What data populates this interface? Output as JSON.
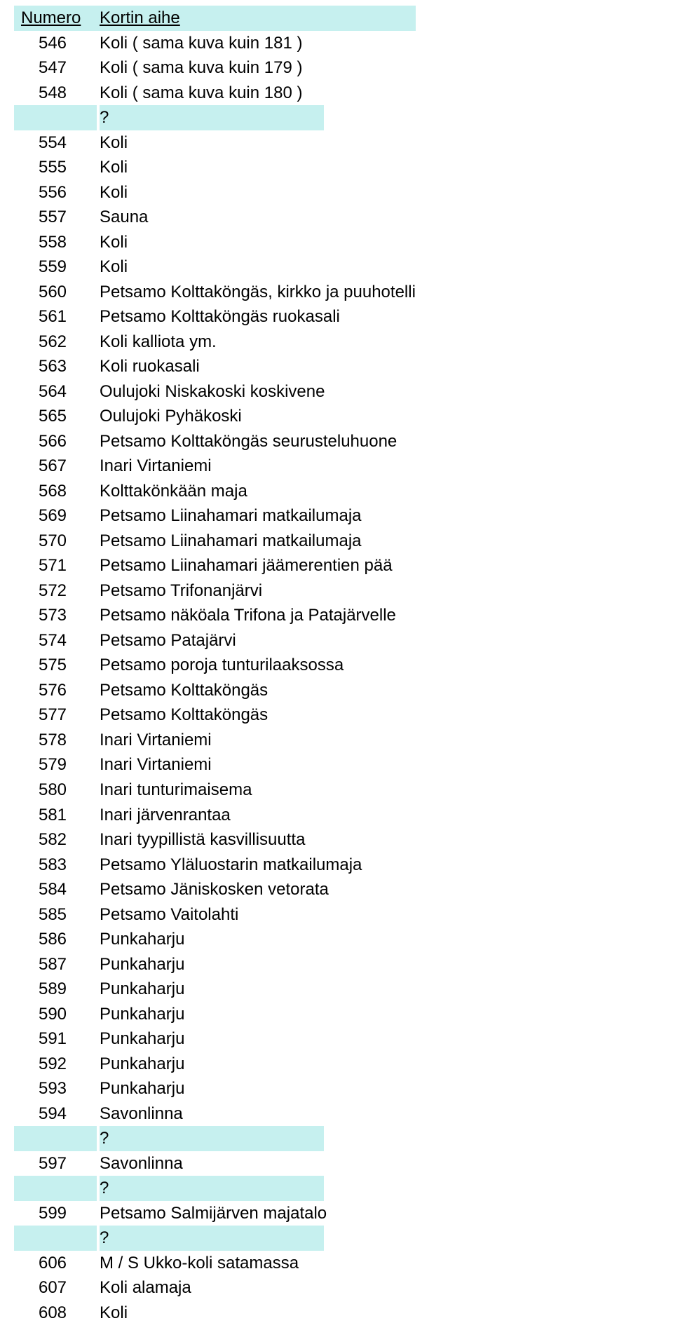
{
  "header": {
    "numero": "Numero",
    "aihe": "Kortin aihe"
  },
  "rows": [
    {
      "num": "546",
      "subj": "Koli ( sama kuva kuin 181 )",
      "hl": false
    },
    {
      "num": "547",
      "subj": "Koli ( sama kuva kuin 179 )",
      "hl": false
    },
    {
      "num": "548",
      "subj": "Koli ( sama kuva kuin 180 )",
      "hl": false
    },
    {
      "num": "",
      "subj": "?",
      "hl": true
    },
    {
      "num": "554",
      "subj": "Koli",
      "hl": false
    },
    {
      "num": "555",
      "subj": "Koli",
      "hl": false
    },
    {
      "num": "556",
      "subj": "Koli",
      "hl": false
    },
    {
      "num": "557",
      "subj": "Sauna",
      "hl": false
    },
    {
      "num": "558",
      "subj": "Koli",
      "hl": false
    },
    {
      "num": "559",
      "subj": "Koli",
      "hl": false
    },
    {
      "num": "560",
      "subj": "Petsamo Kolttaköngäs, kirkko ja puuhotelli",
      "hl": false
    },
    {
      "num": "561",
      "subj": "Petsamo Kolttaköngäs ruokasali",
      "hl": false
    },
    {
      "num": "562",
      "subj": "Koli kalliota ym.",
      "hl": false
    },
    {
      "num": "563",
      "subj": "Koli ruokasali",
      "hl": false
    },
    {
      "num": "564",
      "subj": "Oulujoki Niskakoski koskivene",
      "hl": false
    },
    {
      "num": "565",
      "subj": "Oulujoki Pyhäkoski",
      "hl": false
    },
    {
      "num": "566",
      "subj": "Petsamo Kolttaköngäs seurusteluhuone",
      "hl": false
    },
    {
      "num": "567",
      "subj": "Inari Virtaniemi",
      "hl": false
    },
    {
      "num": "568",
      "subj": "Kolttakönkään maja",
      "hl": false
    },
    {
      "num": "569",
      "subj": "Petsamo Liinahamari matkailumaja",
      "hl": false
    },
    {
      "num": "570",
      "subj": "Petsamo Liinahamari matkailumaja",
      "hl": false
    },
    {
      "num": "571",
      "subj": "Petsamo Liinahamari jäämerentien pää",
      "hl": false
    },
    {
      "num": "572",
      "subj": "Petsamo Trifonanjärvi",
      "hl": false
    },
    {
      "num": "573",
      "subj": "Petsamo näköala Trifona ja Patajärvelle",
      "hl": false
    },
    {
      "num": "574",
      "subj": "Petsamo Patajärvi",
      "hl": false
    },
    {
      "num": "575",
      "subj": "Petsamo poroja tunturilaaksossa",
      "hl": false
    },
    {
      "num": "576",
      "subj": "Petsamo Kolttaköngäs",
      "hl": false
    },
    {
      "num": "577",
      "subj": "Petsamo Kolttaköngäs",
      "hl": false
    },
    {
      "num": "578",
      "subj": "Inari Virtaniemi",
      "hl": false
    },
    {
      "num": "579",
      "subj": "Inari Virtaniemi",
      "hl": false
    },
    {
      "num": "580",
      "subj": "Inari tunturimaisema",
      "hl": false
    },
    {
      "num": "581",
      "subj": "Inari järvenrantaa",
      "hl": false
    },
    {
      "num": "582",
      "subj": "Inari tyypillistä kasvillisuutta",
      "hl": false
    },
    {
      "num": "583",
      "subj": "Petsamo Yläluostarin matkailumaja",
      "hl": false
    },
    {
      "num": "584",
      "subj": "Petsamo Jäniskosken vetorata",
      "hl": false
    },
    {
      "num": "585",
      "subj": "Petsamo Vaitolahti",
      "hl": false
    },
    {
      "num": "586",
      "subj": "Punkaharju",
      "hl": false
    },
    {
      "num": "587",
      "subj": "Punkaharju",
      "hl": false
    },
    {
      "num": "589",
      "subj": "Punkaharju",
      "hl": false
    },
    {
      "num": "590",
      "subj": "Punkaharju",
      "hl": false
    },
    {
      "num": "591",
      "subj": "Punkaharju",
      "hl": false
    },
    {
      "num": "592",
      "subj": "Punkaharju",
      "hl": false
    },
    {
      "num": "593",
      "subj": "Punkaharju",
      "hl": false
    },
    {
      "num": "594",
      "subj": "Savonlinna",
      "hl": false
    },
    {
      "num": "",
      "subj": "?",
      "hl": true
    },
    {
      "num": "597",
      "subj": "Savonlinna",
      "hl": false
    },
    {
      "num": "",
      "subj": "?",
      "hl": true
    },
    {
      "num": "599",
      "subj": "Petsamo Salmijärven majatalo",
      "hl": false
    },
    {
      "num": "",
      "subj": "?",
      "hl": true
    },
    {
      "num": "606",
      "subj": "M / S Ukko-koli satamassa",
      "hl": false
    },
    {
      "num": "607",
      "subj": "Koli alamaja",
      "hl": false
    },
    {
      "num": "608",
      "subj": "Koli",
      "hl": false
    }
  ],
  "colors": {
    "highlight": "#c6f0ef",
    "text": "#000000",
    "background": "#ffffff"
  }
}
